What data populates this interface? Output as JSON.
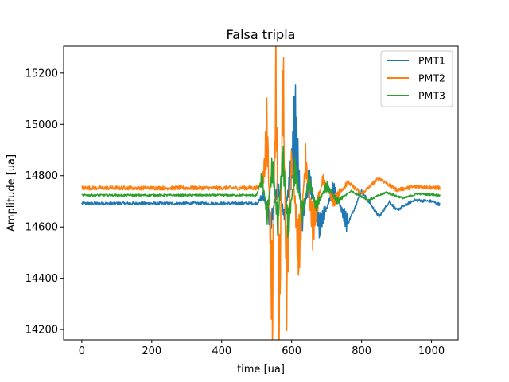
{
  "chart_data": {
    "type": "line",
    "title": "Falsa tripla",
    "xlabel": "time [ua]",
    "ylabel": "Amplitude [ua]",
    "xlim": [
      -52,
      1076
    ],
    "ylim": [
      14160,
      15305
    ],
    "xticks": [
      0,
      200,
      400,
      600,
      800,
      1000
    ],
    "yticks": [
      14200,
      14400,
      14600,
      14800,
      15000,
      15200
    ],
    "grid": false,
    "legend_position": "top-right",
    "x_range": [
      0,
      1024
    ],
    "series": [
      {
        "name": "PMT1",
        "color": "#1f77b4",
        "baseline": 14692,
        "noise": 6,
        "x": [
          0,
          500,
          520,
          540,
          560,
          580,
          600,
          610,
          630,
          650,
          680,
          720,
          760,
          800,
          850,
          880,
          900,
          950,
          1000,
          1024
        ],
        "y": [
          14692,
          14692,
          14720,
          14610,
          14760,
          14640,
          14830,
          15005,
          14620,
          14790,
          14600,
          14750,
          14610,
          14740,
          14640,
          14700,
          14665,
          14705,
          14700,
          14688
        ]
      },
      {
        "name": "PMT2",
        "color": "#ff7f0e",
        "baseline": 14752,
        "noise": 8,
        "x": [
          0,
          505,
          520,
          530,
          545,
          555,
          565,
          575,
          585,
          600,
          620,
          640,
          660,
          690,
          720,
          760,
          800,
          850,
          900,
          960,
          1024
        ],
        "y": [
          14752,
          14752,
          14800,
          14990,
          14290,
          15210,
          14210,
          15250,
          14370,
          14880,
          14500,
          14860,
          14600,
          14790,
          14700,
          14775,
          14730,
          14790,
          14745,
          14758,
          14752
        ]
      },
      {
        "name": "PMT3",
        "color": "#2ca02c",
        "baseline": 14724,
        "noise": 4,
        "x": [
          0,
          500,
          515,
          530,
          545,
          560,
          575,
          590,
          610,
          630,
          650,
          670,
          700,
          730,
          770,
          820,
          870,
          920,
          960,
          1024
        ],
        "y": [
          14724,
          14724,
          14790,
          14650,
          14840,
          14620,
          14870,
          14600,
          14820,
          14660,
          14780,
          14680,
          14760,
          14700,
          14740,
          14705,
          14735,
          14712,
          14730,
          14724
        ]
      }
    ]
  }
}
